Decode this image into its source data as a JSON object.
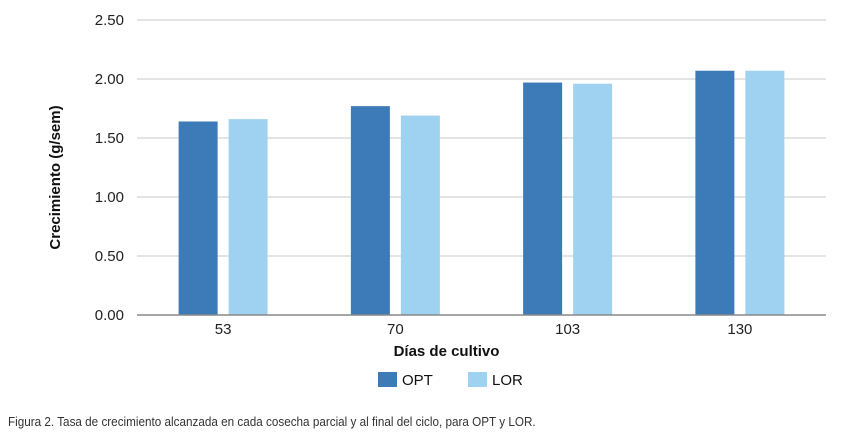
{
  "chart_data": {
    "type": "bar",
    "title": "",
    "xlabel": "Días de cultivo",
    "ylabel": "Crecimiento (g/sem)",
    "categories": [
      "53",
      "70",
      "103",
      "130"
    ],
    "series": [
      {
        "name": "OPT",
        "color": "#3d7ab8",
        "values": [
          1.64,
          1.77,
          1.97,
          2.07
        ]
      },
      {
        "name": "LOR",
        "color": "#9fd2f1",
        "values": [
          1.66,
          1.69,
          1.96,
          2.07
        ]
      }
    ],
    "ylim": [
      0,
      2.5
    ],
    "yticks": [
      "0.00",
      "0.50",
      "1.00",
      "1.50",
      "2.00",
      "2.50"
    ],
    "grid": true,
    "legend_position": "bottom-center",
    "gridline_color": "#d3d3d3"
  },
  "caption": "Figura 2. Tasa de crecimiento alcanzada en cada cosecha parcial y al final del ciclo, para OPT y LOR."
}
